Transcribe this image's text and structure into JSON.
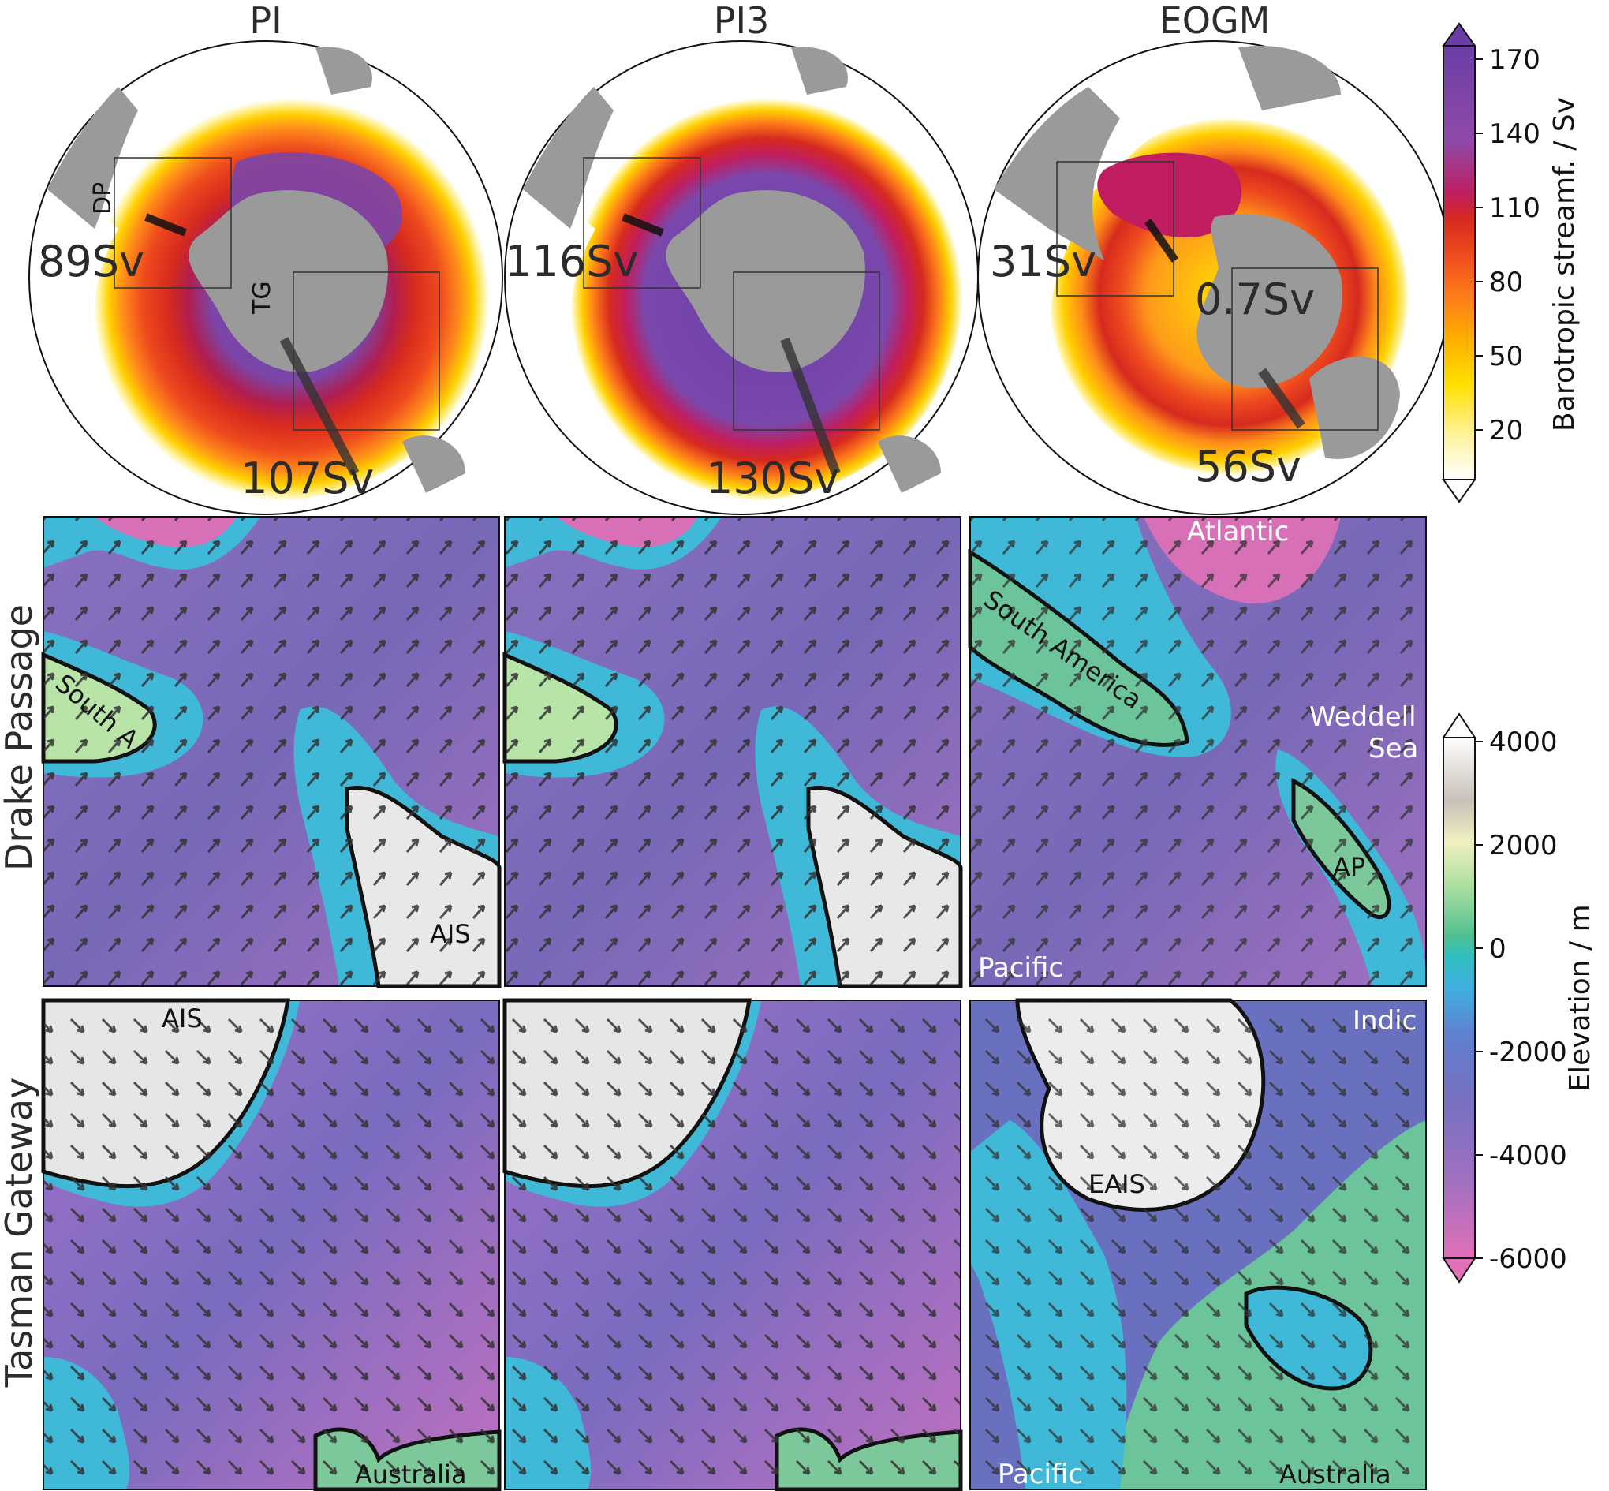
{
  "columns": [
    {
      "id": "pi",
      "title": "PI",
      "dp_transport": "89Sv",
      "tg_transport": "107Sv"
    },
    {
      "id": "pi3",
      "title": "PI3",
      "dp_transport": "116Sv",
      "tg_transport": "130Sv"
    },
    {
      "id": "eogm",
      "title": "EOGM",
      "dp_transport": "31Sv",
      "tg_transport": "56Sv",
      "extra_transport": "0.7Sv"
    }
  ],
  "gateway_labels": {
    "dp": "DP",
    "tg": "TG"
  },
  "rows": [
    {
      "id": "drake",
      "title": "Drake Passage"
    },
    {
      "id": "tasman",
      "title": "Tasman Gateway"
    }
  ],
  "map_labels": {
    "south_a": "South A.",
    "ais": "AIS",
    "atlantic": "Atlantic",
    "south_america": "South America",
    "weddell": "Weddell",
    "sea": "Sea",
    "ap": "AP",
    "pacific": "Pacific",
    "indic": "Indic",
    "eais": "EAIS",
    "australia": "Australia"
  },
  "colorbar_stream": {
    "label": "Barotropic streamf. / Sv",
    "ticks": [
      "170",
      "140",
      "110",
      "80",
      "50",
      "20"
    ],
    "colors": [
      "#ffffff",
      "#fff3a0",
      "#ffe000",
      "#ffb000",
      "#ff7e1a",
      "#ee4a1e",
      "#d62a1e",
      "#c01e60",
      "#8f4aa8",
      "#6a3ea6"
    ]
  },
  "colorbar_elev": {
    "label": "Elevation / m",
    "ticks": [
      "4000",
      "2000",
      "0",
      "-2000",
      "-4000",
      "-6000"
    ],
    "colors": [
      "#e070b8",
      "#a070c0",
      "#7870c0",
      "#6080d0",
      "#40b0e0",
      "#30c0c0",
      "#50c090",
      "#b0e0a0",
      "#f0f0c0",
      "#e8e0d8",
      "#c0b8b0",
      "#ffffff"
    ]
  }
}
